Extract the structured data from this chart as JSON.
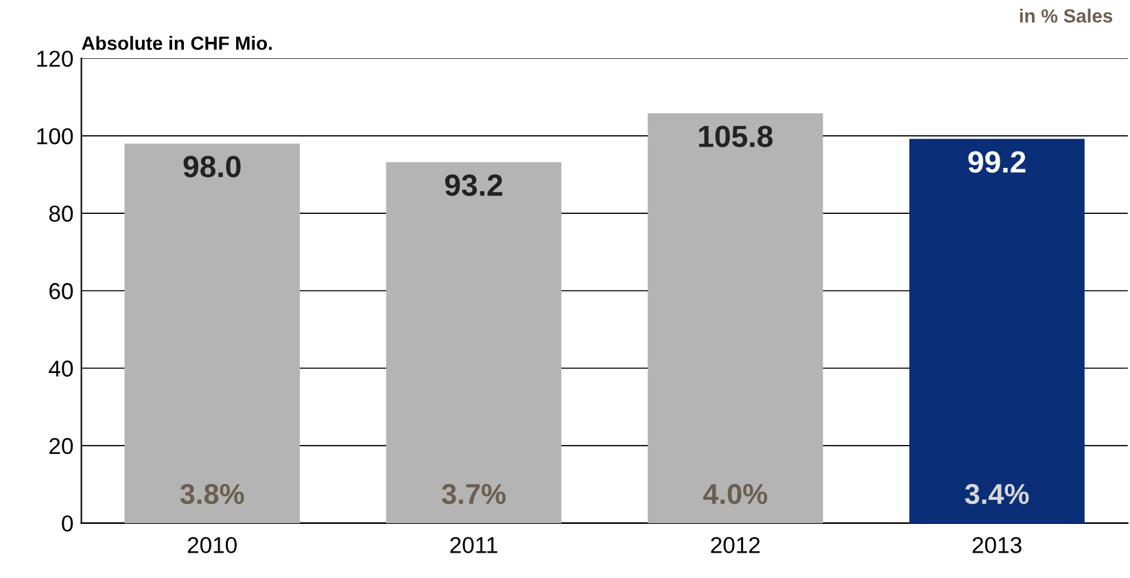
{
  "chart_data": {
    "type": "bar",
    "ylabel": "Absolute in CHF Mio.",
    "categories": [
      "2010",
      "2011",
      "2012",
      "2013"
    ],
    "values": [
      98.0,
      93.2,
      105.8,
      99.2
    ],
    "colors": [
      "#b4b4b4",
      "#b4b4b4",
      "#b4b4b4",
      "#0a2f78"
    ],
    "value_labels": [
      "98.0",
      "93.2",
      "105.8",
      "99.2"
    ],
    "ylim": [
      0,
      120
    ],
    "yticks": [
      0,
      20,
      40,
      60,
      80,
      100,
      120
    ],
    "grid": "y",
    "annotations": [
      "in % Sales",
      {
        "text": "3.8%",
        "x": "2010",
        "y": 0
      },
      {
        "text": "3.7%",
        "x": "2011",
        "y": 0
      },
      {
        "text": "4.0%",
        "x": "2012",
        "y": 0
      },
      {
        "text": "3.4%",
        "x": "2013",
        "y": 0
      }
    ]
  }
}
